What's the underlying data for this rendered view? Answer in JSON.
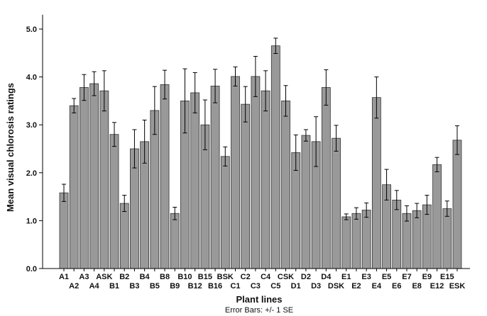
{
  "chart_data": {
    "type": "bar",
    "ylabel": "Mean visual chlorosis ratings",
    "xlabel": "Plant lines",
    "note": "Error Bars: +/- 1 SE",
    "ylim": [
      0,
      5.3
    ],
    "yticks": [
      "0.0",
      "1.0",
      "2.0",
      "3.0",
      "4.0",
      "5.0"
    ],
    "grid": false,
    "bar_color": "#999999",
    "categories": [
      "A1",
      "A2",
      "A3",
      "A4",
      "ASK",
      "B1",
      "B2",
      "B3",
      "B4",
      "B5",
      "B8",
      "B9",
      "B10",
      "B12",
      "B15",
      "B16",
      "BSK",
      "C1",
      "C2",
      "C3",
      "C4",
      "C5",
      "CSK",
      "D1",
      "D2",
      "D3",
      "D4",
      "DSK",
      "E1",
      "E2",
      "E3",
      "E4",
      "E5",
      "E6",
      "E7",
      "E8",
      "E9",
      "E12",
      "E15",
      "ESK"
    ],
    "values": [
      1.58,
      3.4,
      3.78,
      3.86,
      3.71,
      2.8,
      1.36,
      2.5,
      2.65,
      3.3,
      3.84,
      1.15,
      3.5,
      3.67,
      3.0,
      3.81,
      2.34,
      4.01,
      3.43,
      4.01,
      3.71,
      4.65,
      3.5,
      2.42,
      2.78,
      2.65,
      3.78,
      2.72,
      1.08,
      1.15,
      1.22,
      3.57,
      1.75,
      1.43,
      1.15,
      1.21,
      1.33,
      2.17,
      1.25,
      2.68
    ],
    "errors": [
      0.18,
      0.15,
      0.27,
      0.25,
      0.42,
      0.25,
      0.17,
      0.4,
      0.45,
      0.5,
      0.3,
      0.13,
      0.67,
      0.42,
      0.52,
      0.35,
      0.2,
      0.2,
      0.37,
      0.42,
      0.42,
      0.16,
      0.32,
      0.37,
      0.12,
      0.52,
      0.37,
      0.27,
      0.06,
      0.12,
      0.15,
      0.43,
      0.32,
      0.2,
      0.16,
      0.15,
      0.2,
      0.15,
      0.16,
      0.3
    ]
  }
}
